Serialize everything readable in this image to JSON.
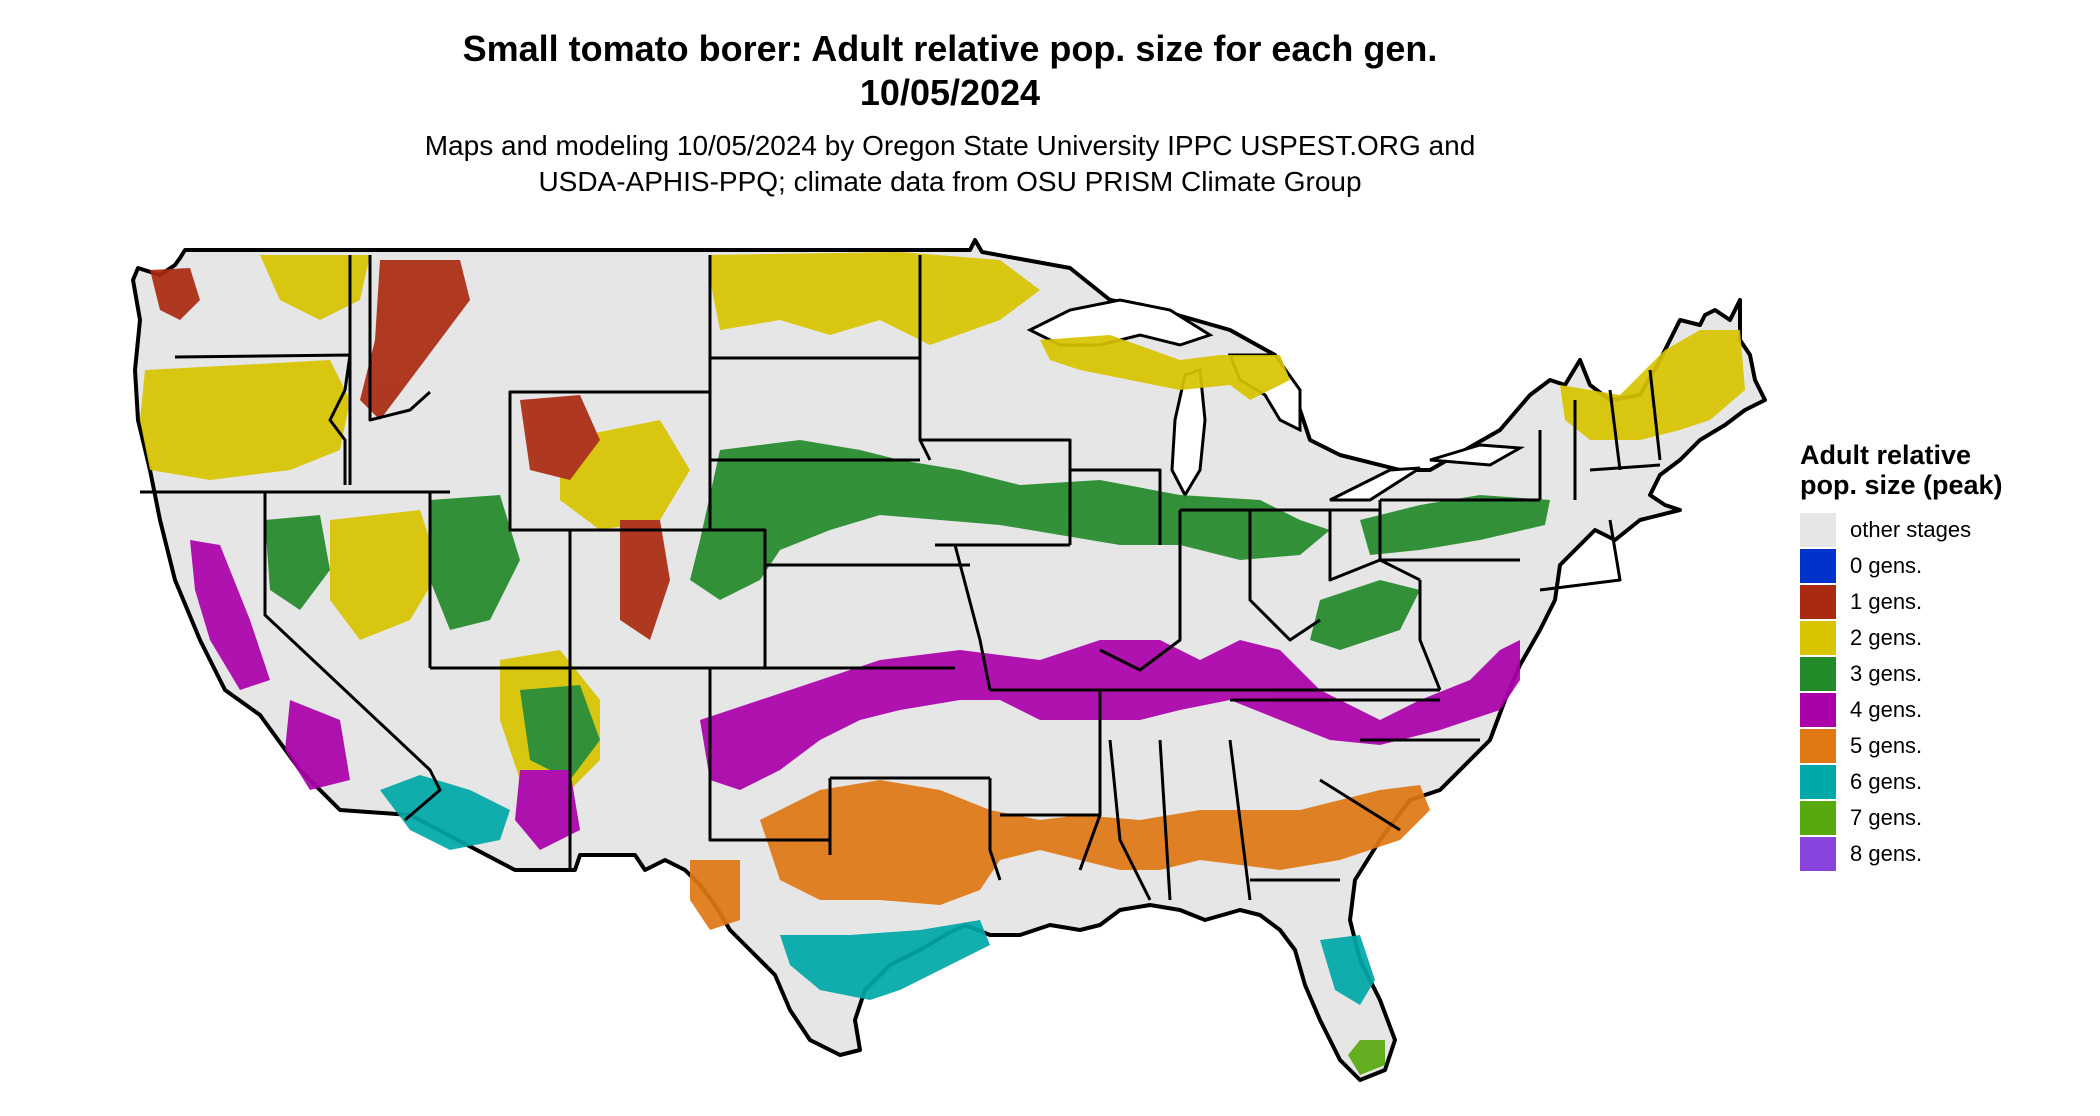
{
  "title_line1": "Small tomato borer: Adult relative pop. size for each gen.",
  "title_line2": "10/05/2024",
  "subtitle_line1": "Maps and modeling 10/05/2024 by Oregon State University IPPC USPEST.ORG and",
  "subtitle_line2": "USDA-APHIS-PPQ; climate data from OSU PRISM Climate Group",
  "legend": {
    "title": "Adult relative pop. size (peak)",
    "items": [
      {
        "label": "other stages",
        "color": "#e6e6e6"
      },
      {
        "label": "0 gens.",
        "color": "#0033cc"
      },
      {
        "label": "1 gens.",
        "color": "#aa2a10"
      },
      {
        "label": "2 gens.",
        "color": "#d8c400"
      },
      {
        "label": "3 gens.",
        "color": "#238a2a"
      },
      {
        "label": "4 gens.",
        "color": "#aa00aa"
      },
      {
        "label": "5 gens.",
        "color": "#e07814"
      },
      {
        "label": "6 gens.",
        "color": "#00a8a8"
      },
      {
        "label": "7 gens.",
        "color": "#58a810"
      },
      {
        "label": "8 gens.",
        "color": "#8844dd"
      }
    ]
  },
  "map": {
    "background_color": "#e6e6e6",
    "border_color": "#000000",
    "regions": [
      {
        "gens": 1,
        "area": "Pacific Northwest / Idaho / western Montana"
      },
      {
        "gens": 2,
        "area": "Northern Plains, Oregon, northern Great Lakes, northern New England"
      },
      {
        "gens": 3,
        "area": "Central Plains and Midwest band, Great Basin"
      },
      {
        "gens": 4,
        "area": "Southern Plains to Mid-Atlantic band, California Central Valley"
      },
      {
        "gens": 5,
        "area": "Texas to Carolinas band"
      },
      {
        "gens": 6,
        "area": "Gulf Coast, Arizona, southeast California, central Florida"
      },
      {
        "gens": 7,
        "area": "South Florida"
      }
    ]
  }
}
